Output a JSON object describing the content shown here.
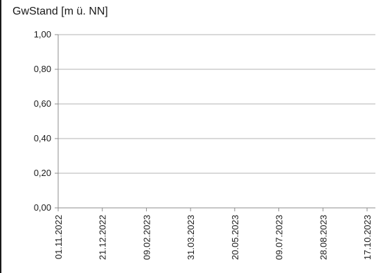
{
  "chart_data": {
    "type": "line",
    "title": "",
    "xlabel": "",
    "ylabel": "GwStand [m ü. NN]",
    "ylim": [
      0,
      1
    ],
    "y_ticks": [
      "1,00",
      "0,80",
      "0,60",
      "0,40",
      "0,20",
      "0,00"
    ],
    "y_tick_values": [
      1.0,
      0.8,
      0.6,
      0.4,
      0.2,
      0.0
    ],
    "x_ticks": [
      "01.11.2022",
      "21.12.2022",
      "09.02.2023",
      "31.03.2023",
      "20.05.2023",
      "09.07.2023",
      "28.08.2023",
      "17.10.2023"
    ],
    "grid": true,
    "series": [],
    "colors": {
      "grid": "#b3b3b3",
      "axis": "#8c8c8c",
      "text": "#1a1a1a"
    }
  }
}
